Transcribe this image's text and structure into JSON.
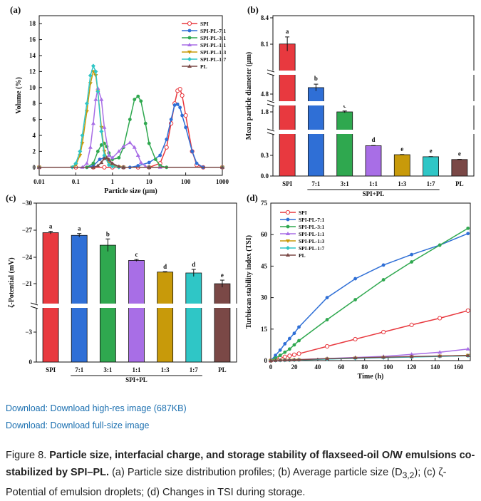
{
  "figure_label": "Figure 8.",
  "caption_bold": "Particle size, interfacial charge, and storage stability of flaxseed-oil O/W emulsions co-stabilized by SPI–PL.",
  "caption_rest": " (a) Particle size distribution profiles; (b) Average particle size (D",
  "caption_sub": "3,2",
  "caption_end": "); (c) ζ-Potential of emulsion droplets; (d) Changes in TSI during storage.",
  "downloads": [
    "Download: Download high-res image (687KB)",
    "Download: Download full-size image"
  ],
  "colors": {
    "SPI": "#e8393f",
    "SPI-PL-7:1": "#2f6fd6",
    "SPI-PL-3:1": "#2fa84f",
    "SPI-PL-1:1": "#a86ee6",
    "SPI-PL-1:3": "#c89a0a",
    "SPI-PL-1:7": "#2fc6c6",
    "PL": "#7a4846"
  },
  "chart_data": [
    {
      "panel": "(a)",
      "type": "line",
      "xlabel": "Particle size (μm)",
      "ylabel": "Volume (%)",
      "xscale": "log",
      "xlim": [
        0.01,
        1000
      ],
      "ylim": [
        -1,
        19
      ],
      "xticks": [
        0.01,
        0.1,
        1,
        10,
        100,
        1000
      ],
      "xtick_labels": [
        "0.01",
        "0.1",
        "1",
        "10",
        "100",
        "1000"
      ],
      "yticks": [
        0,
        2,
        4,
        6,
        8,
        10,
        12,
        14,
        16,
        18
      ],
      "legend": "top-right",
      "series": [
        {
          "name": "SPI",
          "x": [
            0.01,
            0.1,
            0.3,
            0.6,
            1,
            2,
            5,
            10,
            20,
            30,
            40,
            50,
            60,
            70,
            80,
            100,
            150,
            200,
            300,
            1000
          ],
          "y": [
            0,
            0,
            0,
            0,
            0,
            0,
            0,
            0,
            0.5,
            2.5,
            5.5,
            8,
            9.6,
            9.8,
            9,
            6.5,
            2,
            0.3,
            0,
            0
          ]
        },
        {
          "name": "SPI-PL-7:1",
          "x": [
            0.01,
            0.2,
            0.3,
            0.45,
            0.6,
            0.8,
            1,
            1.5,
            2,
            3,
            5,
            10,
            20,
            30,
            40,
            50,
            60,
            70,
            80,
            100,
            150,
            200,
            300,
            1000
          ],
          "y": [
            0,
            0,
            0.2,
            1,
            1.2,
            0.8,
            0.3,
            0.05,
            0,
            0,
            0.2,
            0.6,
            1.5,
            3.5,
            6,
            7.8,
            7.9,
            7.5,
            6.5,
            5,
            2,
            0.5,
            0,
            0
          ]
        },
        {
          "name": "SPI-PL-3:1",
          "x": [
            0.01,
            0.2,
            0.3,
            0.4,
            0.5,
            0.6,
            0.7,
            0.8,
            1,
            1.5,
            2,
            3,
            4,
            5,
            6,
            8,
            10,
            15,
            20,
            30,
            1000
          ],
          "y": [
            0,
            0,
            0.5,
            2,
            2.8,
            3,
            2.6,
            1.8,
            1,
            1.2,
            2.5,
            6,
            8.5,
            8.9,
            8.3,
            5.5,
            3,
            1,
            0.2,
            0,
            0
          ]
        },
        {
          "name": "SPI-PL-1:1",
          "x": [
            0.01,
            0.15,
            0.2,
            0.25,
            0.3,
            0.35,
            0.4,
            0.5,
            0.6,
            0.8,
            1,
            1.5,
            2,
            3,
            4,
            5,
            6,
            8,
            10,
            20,
            1000
          ],
          "y": [
            0,
            0,
            0.5,
            2.5,
            5.5,
            8.5,
            9.9,
            8.5,
            5,
            1.5,
            1.2,
            2,
            2.6,
            3.1,
            2.5,
            1.5,
            0.6,
            0.1,
            0,
            0,
            0
          ]
        },
        {
          "name": "SPI-PL-1:3",
          "x": [
            0.01,
            0.08,
            0.1,
            0.13,
            0.15,
            0.2,
            0.25,
            0.3,
            0.35,
            0.4,
            0.5,
            0.6,
            0.8,
            1,
            1.5,
            2,
            10,
            1000
          ],
          "y": [
            0,
            0,
            0.3,
            1.5,
            3,
            7,
            10.5,
            12,
            11.5,
            9.5,
            5,
            2,
            0.5,
            0.2,
            0.05,
            0,
            0,
            0
          ]
        },
        {
          "name": "SPI-PL-1:7",
          "x": [
            0.01,
            0.08,
            0.1,
            0.13,
            0.15,
            0.2,
            0.25,
            0.3,
            0.35,
            0.4,
            0.5,
            0.6,
            0.8,
            1,
            1.5,
            2,
            10,
            1000
          ],
          "y": [
            0,
            0,
            0.5,
            2,
            4,
            8,
            11.5,
            12.7,
            12,
            9.5,
            4.5,
            1.5,
            0.3,
            0.1,
            0,
            0,
            0,
            0
          ]
        },
        {
          "name": "PL",
          "x": [
            0.01,
            0.3,
            0.4,
            0.5,
            0.6,
            0.7,
            0.8,
            1,
            1.5,
            2,
            10,
            1000
          ],
          "y": [
            0,
            0,
            0.2,
            0.6,
            1.1,
            1.2,
            1.0,
            0.5,
            0.1,
            0,
            0,
            0
          ]
        }
      ]
    },
    {
      "panel": "(b)",
      "type": "bar",
      "ylabel": "Mean particle diameter (μm)",
      "categories": [
        "SPI",
        "7:1",
        "3:1",
        "1:1",
        "1:3",
        "1:7",
        "PL"
      ],
      "group_label": "SPI+PL",
      "values": [
        7.9,
        5.2,
        1.67,
        0.44,
        0.31,
        0.28,
        0.24
      ],
      "errors": [
        0.45,
        0.22,
        0.05,
        0.01,
        0.01,
        0.01,
        0.01
      ],
      "letters": [
        "a",
        "b",
        "c",
        "d",
        "e",
        "e",
        "e"
      ],
      "yticks": [
        0.0,
        0.3,
        1.8,
        4.8,
        8.1,
        8.4
      ],
      "axis_breaks": true
    },
    {
      "panel": "(c)",
      "type": "bar",
      "ylabel": "ζ-Potential (mV)",
      "categories": [
        "SPI",
        "7:1",
        "3:1",
        "1:1",
        "1:3",
        "1:7",
        "PL"
      ],
      "group_label": "SPI+PL",
      "values": [
        -26.7,
        -26.4,
        -25.3,
        -23.6,
        -22.3,
        -22.2,
        -21.0
      ],
      "errors": [
        0.15,
        0.2,
        0.7,
        0.1,
        0.05,
        0.4,
        0.4
      ],
      "letters": [
        "a",
        "a",
        "b",
        "c",
        "d",
        "d",
        "e"
      ],
      "yticks": [
        -30,
        -27,
        -24,
        -21,
        -3,
        0
      ],
      "axis_breaks": true
    },
    {
      "panel": "(d)",
      "type": "line",
      "xlabel": "Time (h)",
      "ylabel": "Turbiscan stability index (TSI)",
      "xlim": [
        0,
        170
      ],
      "ylim": [
        0,
        75
      ],
      "xticks": [
        0,
        20,
        40,
        60,
        80,
        100,
        120,
        140,
        160
      ],
      "yticks": [
        0,
        15,
        30,
        45,
        60,
        75
      ],
      "legend": "top-left",
      "series": [
        {
          "name": "SPI",
          "x": [
            0,
            4,
            8,
            12,
            16,
            20,
            24,
            48,
            72,
            96,
            120,
            144,
            168
          ],
          "y": [
            0,
            0.6,
            1.2,
            1.8,
            2.3,
            2.8,
            3.3,
            6.8,
            10.2,
            13.6,
            17,
            20.2,
            23.8
          ]
        },
        {
          "name": "SPI-PL-7:1",
          "x": [
            0,
            4,
            8,
            12,
            16,
            20,
            24,
            48,
            72,
            96,
            120,
            144,
            168
          ],
          "y": [
            0,
            2.5,
            5,
            8,
            10.5,
            13,
            16,
            30,
            39,
            45.5,
            50.5,
            55,
            60.5
          ]
        },
        {
          "name": "SPI-PL-3:1",
          "x": [
            0,
            4,
            8,
            12,
            16,
            20,
            24,
            48,
            72,
            96,
            120,
            144,
            168
          ],
          "y": [
            0,
            1.2,
            2.5,
            4,
            5.5,
            7.5,
            9.5,
            19.5,
            29,
            38.5,
            47,
            55,
            63
          ]
        },
        {
          "name": "SPI-PL-1:1",
          "x": [
            0,
            4,
            8,
            12,
            16,
            20,
            24,
            48,
            72,
            96,
            120,
            144,
            168
          ],
          "y": [
            0,
            0.1,
            0.2,
            0.3,
            0.35,
            0.4,
            0.5,
            1,
            1.5,
            2,
            3,
            4,
            5.5
          ]
        },
        {
          "name": "SPI-PL-1:3",
          "x": [
            0,
            4,
            8,
            12,
            16,
            20,
            24,
            48,
            72,
            96,
            120,
            144,
            168
          ],
          "y": [
            0,
            0.1,
            0.15,
            0.2,
            0.25,
            0.3,
            0.35,
            0.8,
            1.2,
            1.5,
            1.8,
            2.1,
            2.5
          ]
        },
        {
          "name": "SPI-PL-1:7",
          "x": [
            0,
            4,
            8,
            12,
            16,
            20,
            24,
            48,
            72,
            96,
            120,
            144,
            168
          ],
          "y": [
            0,
            0.1,
            0.15,
            0.2,
            0.25,
            0.3,
            0.35,
            0.7,
            1.1,
            1.4,
            1.7,
            2,
            2.3
          ]
        },
        {
          "name": "PL",
          "x": [
            0,
            4,
            8,
            12,
            16,
            20,
            24,
            48,
            72,
            96,
            120,
            144,
            168
          ],
          "y": [
            0,
            0.1,
            0.2,
            0.25,
            0.3,
            0.35,
            0.4,
            0.9,
            1.3,
            1.6,
            1.9,
            2.2,
            2.4
          ]
        }
      ]
    }
  ]
}
